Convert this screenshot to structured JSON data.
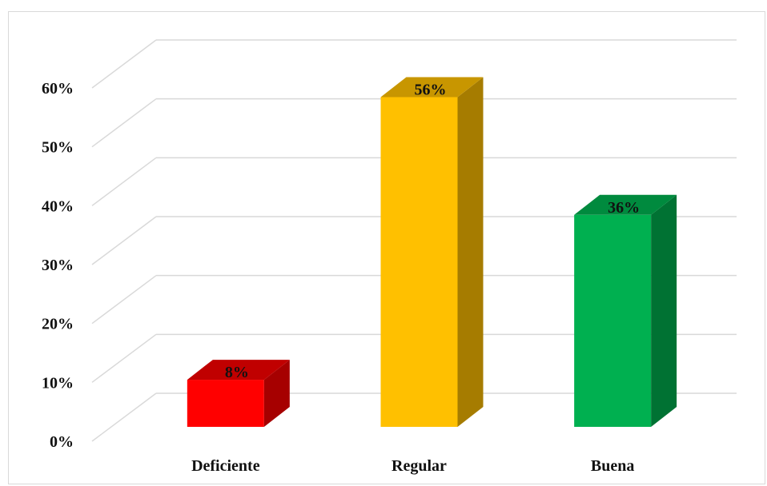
{
  "chart_data": {
    "type": "bar",
    "style": "3d-column",
    "categories": [
      "Deficiente",
      "Regular",
      "Buena"
    ],
    "values": [
      8,
      56,
      36
    ],
    "data_labels": [
      "8%",
      "56%",
      "36%"
    ],
    "ylim": [
      0,
      60
    ],
    "yticks": [
      0,
      10,
      20,
      30,
      40,
      50,
      60
    ],
    "ytick_labels": [
      "0%",
      "10%",
      "20%",
      "30%",
      "40%",
      "50%",
      "60%"
    ],
    "grid": true,
    "legend": "none",
    "colors": {
      "Deficiente": {
        "front": "#ff0000",
        "side": "#a60000",
        "top": "#c00000"
      },
      "Regular": {
        "front": "#ffc000",
        "side": "#a67c00",
        "top": "#c89600"
      },
      "Buena": {
        "front": "#00b050",
        "side": "#007233",
        "top": "#008a3e"
      },
      "grid": "#d9d9d9"
    }
  }
}
